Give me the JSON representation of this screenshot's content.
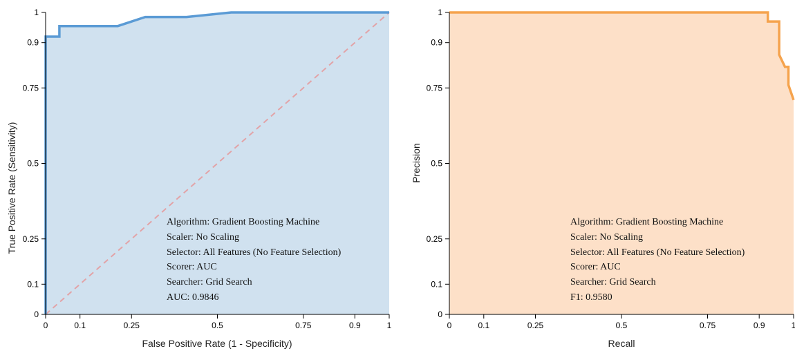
{
  "chart_data": [
    {
      "type": "area",
      "name": "roc",
      "xlabel": "False Positive Rate (1 - Specificity)",
      "ylabel": "True Positive Rate (Sensitivity)",
      "xlim": [
        0,
        1
      ],
      "ylim": [
        0,
        1
      ],
      "xticks": [
        0,
        0.1,
        0.25,
        0.5,
        0.75,
        0.9,
        1
      ],
      "yticks": [
        0,
        0.1,
        0.25,
        0.5,
        0.75,
        0.9,
        1
      ],
      "line_color": "#5b9bd5",
      "fill_color": "#d0e1ef",
      "diagonal_color": "#e2a3a7",
      "x": [
        0,
        0,
        0.04,
        0.04,
        0.21,
        0.29,
        0.41,
        0.54,
        1
      ],
      "y": [
        0,
        0.92,
        0.92,
        0.955,
        0.955,
        0.985,
        0.985,
        1,
        1
      ],
      "annotations": [
        "Algorithm: Gradient Boosting Machine",
        "Scaler: No Scaling",
        "Selector: All Features (No Feature Selection)",
        "Scorer: AUC",
        "Searcher: Grid Search",
        "AUC: 0.9846"
      ]
    },
    {
      "type": "area",
      "name": "pr",
      "xlabel": "Recall",
      "ylabel": "Precision",
      "xlim": [
        0,
        1
      ],
      "ylim": [
        0,
        1
      ],
      "xticks": [
        0,
        0.1,
        0.25,
        0.5,
        0.75,
        0.9,
        1
      ],
      "yticks": [
        0,
        0.1,
        0.25,
        0.5,
        0.75,
        0.9,
        1
      ],
      "line_color": "#f5a34d",
      "fill_color": "#fde0c8",
      "x": [
        0,
        0.925,
        0.925,
        0.958,
        0.958,
        0.975,
        0.985,
        0.985,
        1
      ],
      "y": [
        1,
        1,
        0.97,
        0.97,
        0.86,
        0.82,
        0.82,
        0.76,
        0.71
      ],
      "annotations": [
        "Algorithm: Gradient Boosting Machine",
        "Scaler: No Scaling",
        "Selector: All Features (No Feature Selection)",
        "Scorer: AUC",
        "Searcher: Grid Search",
        "F1: 0.9580"
      ]
    }
  ]
}
